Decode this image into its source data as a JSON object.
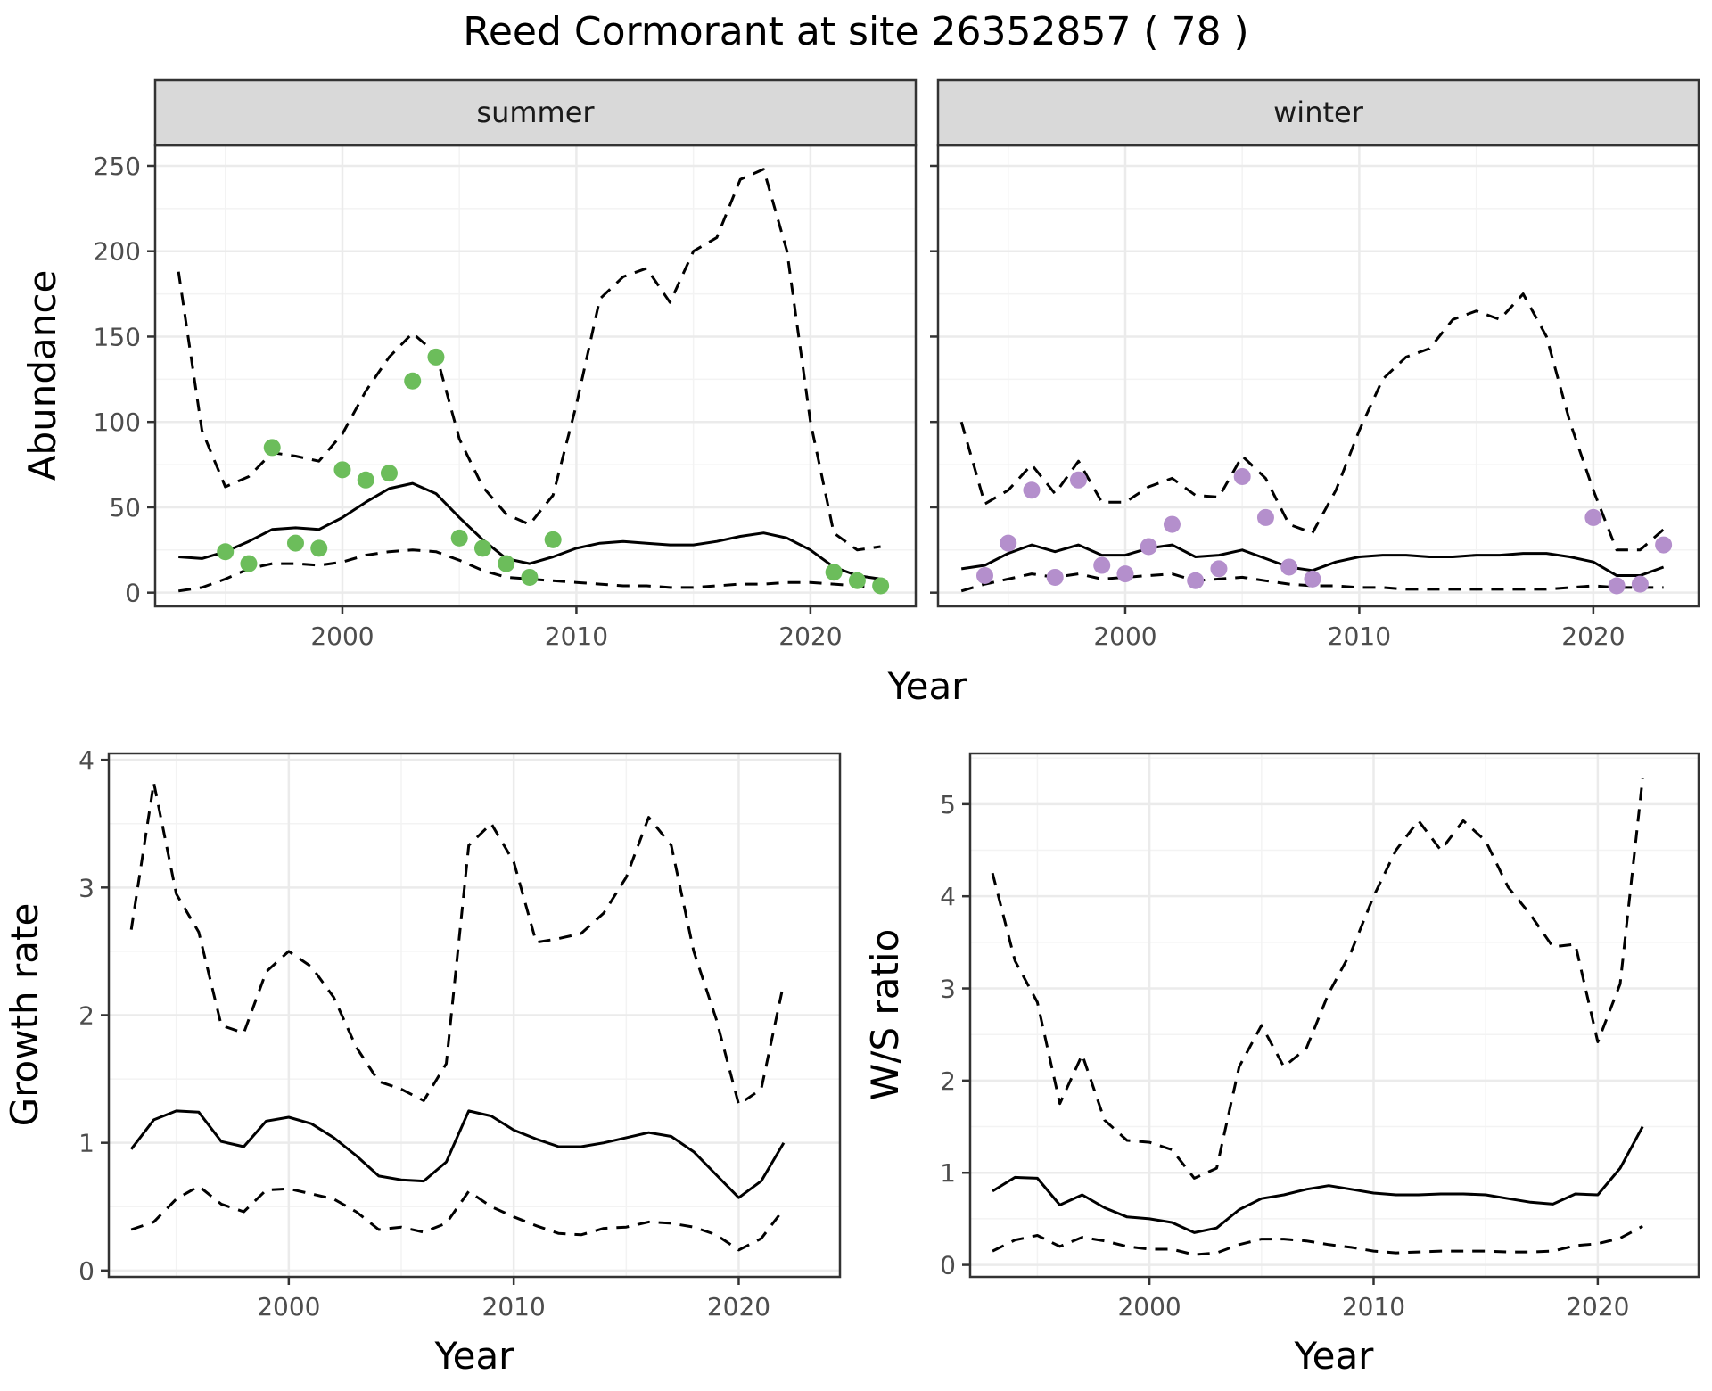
{
  "title": "Reed Cormorant at site 26352857 ( 78 )",
  "colors": {
    "summer_points": "#6cbd5b",
    "winter_points": "#b48fcc",
    "line": "#000000",
    "grid_major": "#ebebeb",
    "grid_minor": "#f3f3f3",
    "strip_fill": "#d9d9d9"
  },
  "chart_data": [
    {
      "type": "line",
      "panel": "summer",
      "strip_label": "summer",
      "xlabel": "Year",
      "ylabel": "Abundance",
      "xlim": [
        1992,
        2024.5
      ],
      "ylim": [
        -8,
        262
      ],
      "x_ticks": [
        2000,
        2010,
        2020
      ],
      "y_ticks": [
        0,
        50,
        100,
        150,
        200,
        250
      ],
      "grid": true,
      "x": [
        1993,
        1994,
        1995,
        1996,
        1997,
        1998,
        1999,
        2000,
        2001,
        2002,
        2003,
        2004,
        2005,
        2006,
        2007,
        2008,
        2009,
        2010,
        2011,
        2012,
        2013,
        2014,
        2015,
        2016,
        2017,
        2018,
        2019,
        2020,
        2021,
        2022,
        2023
      ],
      "series": [
        {
          "role": "estimate",
          "values": [
            21,
            20,
            24,
            30,
            37,
            38,
            37,
            44,
            53,
            61,
            64,
            58,
            44,
            31,
            20,
            17,
            21,
            26,
            29,
            30,
            29,
            28,
            28,
            30,
            33,
            35,
            32,
            25,
            15,
            10,
            8
          ]
        },
        {
          "role": "upper",
          "values": [
            188,
            95,
            62,
            68,
            82,
            80,
            77,
            93,
            118,
            138,
            152,
            140,
            90,
            62,
            46,
            40,
            57,
            110,
            172,
            185,
            190,
            170,
            200,
            208,
            242,
            248,
            200,
            100,
            35,
            25,
            27
          ]
        },
        {
          "role": "lower",
          "values": [
            1,
            3,
            8,
            14,
            17,
            17,
            16,
            18,
            22,
            24,
            25,
            24,
            19,
            13,
            9,
            8,
            7,
            6,
            5,
            4,
            4,
            3,
            3,
            4,
            5,
            5,
            6,
            6,
            5,
            4,
            3
          ]
        }
      ],
      "points": {
        "x": [
          1995,
          1996,
          1997,
          1998,
          1999,
          2000,
          2001,
          2002,
          2003,
          2004,
          2005,
          2006,
          2007,
          2008,
          2009,
          2021,
          2022,
          2023
        ],
        "y": [
          24,
          17,
          85,
          29,
          26,
          72,
          66,
          70,
          124,
          138,
          32,
          26,
          17,
          9,
          31,
          12,
          7,
          4
        ]
      }
    },
    {
      "type": "line",
      "panel": "winter",
      "strip_label": "winter",
      "xlabel": "Year",
      "ylabel": "",
      "xlim": [
        1992,
        2024.5
      ],
      "ylim": [
        -8,
        262
      ],
      "x_ticks": [
        2000,
        2010,
        2020
      ],
      "y_ticks": [
        0,
        50,
        100,
        150,
        200,
        250
      ],
      "grid": true,
      "x": [
        1993,
        1994,
        1995,
        1996,
        1997,
        1998,
        1999,
        2000,
        2001,
        2002,
        2003,
        2004,
        2005,
        2006,
        2007,
        2008,
        2009,
        2010,
        2011,
        2012,
        2013,
        2014,
        2015,
        2016,
        2017,
        2018,
        2019,
        2020,
        2021,
        2022,
        2023
      ],
      "series": [
        {
          "role": "estimate",
          "values": [
            14,
            16,
            23,
            28,
            24,
            28,
            22,
            22,
            26,
            28,
            21,
            22,
            25,
            20,
            15,
            13,
            18,
            21,
            22,
            22,
            21,
            21,
            22,
            22,
            23,
            23,
            21,
            18,
            10,
            10,
            15
          ]
        },
        {
          "role": "upper",
          "values": [
            100,
            52,
            60,
            75,
            58,
            77,
            53,
            53,
            62,
            67,
            57,
            56,
            80,
            67,
            40,
            35,
            60,
            95,
            125,
            138,
            143,
            160,
            165,
            160,
            175,
            150,
            100,
            60,
            25,
            25,
            37
          ]
        },
        {
          "role": "lower",
          "values": [
            1,
            5,
            8,
            11,
            9,
            11,
            8,
            9,
            10,
            11,
            7,
            8,
            9,
            7,
            5,
            4,
            4,
            3,
            3,
            2,
            2,
            2,
            2,
            2,
            2,
            2,
            3,
            4,
            3,
            3,
            3
          ]
        }
      ],
      "points": {
        "x": [
          1994,
          1995,
          1996,
          1997,
          1998,
          1999,
          2000,
          2001,
          2002,
          2003,
          2004,
          2005,
          2006,
          2007,
          2008,
          2020,
          2021,
          2022,
          2023
        ],
        "y": [
          10,
          29,
          60,
          9,
          66,
          16,
          11,
          27,
          40,
          7,
          14,
          68,
          44,
          15,
          8,
          44,
          4,
          5,
          28
        ]
      }
    },
    {
      "type": "line",
      "panel": "growth",
      "xlabel": "Year",
      "ylabel": "Growth rate",
      "xlim": [
        1992,
        2024.5
      ],
      "ylim": [
        -0.05,
        4.05
      ],
      "x_ticks": [
        2000,
        2010,
        2020
      ],
      "y_ticks": [
        0,
        1,
        2,
        3,
        4
      ],
      "grid": true,
      "x": [
        1993,
        1994,
        1995,
        1996,
        1997,
        1998,
        1999,
        2000,
        2001,
        2002,
        2003,
        2004,
        2005,
        2006,
        2007,
        2008,
        2009,
        2010,
        2011,
        2012,
        2013,
        2014,
        2015,
        2016,
        2017,
        2018,
        2019,
        2020,
        2021,
        2022
      ],
      "series": [
        {
          "role": "estimate",
          "values": [
            0.95,
            1.18,
            1.25,
            1.24,
            1.01,
            0.97,
            1.17,
            1.2,
            1.15,
            1.04,
            0.9,
            0.74,
            0.71,
            0.7,
            0.85,
            1.25,
            1.21,
            1.1,
            1.03,
            0.97,
            0.97,
            1.0,
            1.04,
            1.08,
            1.05,
            0.93,
            0.75,
            0.57,
            0.7,
            1.0
          ]
        },
        {
          "role": "upper",
          "values": [
            2.67,
            3.82,
            2.95,
            2.65,
            1.92,
            1.86,
            2.34,
            2.5,
            2.38,
            2.14,
            1.75,
            1.48,
            1.42,
            1.33,
            1.62,
            3.33,
            3.5,
            3.2,
            2.57,
            2.6,
            2.64,
            2.8,
            3.08,
            3.55,
            3.33,
            2.5,
            1.97,
            1.3,
            1.42,
            2.25
          ]
        },
        {
          "role": "lower",
          "values": [
            0.32,
            0.38,
            0.56,
            0.66,
            0.52,
            0.46,
            0.63,
            0.64,
            0.6,
            0.56,
            0.46,
            0.32,
            0.34,
            0.3,
            0.37,
            0.62,
            0.5,
            0.42,
            0.35,
            0.29,
            0.28,
            0.33,
            0.34,
            0.38,
            0.37,
            0.34,
            0.28,
            0.16,
            0.25,
            0.48
          ]
        }
      ]
    },
    {
      "type": "line",
      "panel": "ratio",
      "xlabel": "Year",
      "ylabel": "W/S ratio",
      "xlim": [
        1992,
        2024.5
      ],
      "ylim": [
        -0.13,
        5.55
      ],
      "x_ticks": [
        2000,
        2010,
        2020
      ],
      "y_ticks": [
        0,
        1,
        2,
        3,
        4,
        5
      ],
      "grid": true,
      "x": [
        1993,
        1994,
        1995,
        1996,
        1997,
        1998,
        1999,
        2000,
        2001,
        2002,
        2003,
        2004,
        2005,
        2006,
        2007,
        2008,
        2009,
        2010,
        2011,
        2012,
        2013,
        2014,
        2015,
        2016,
        2017,
        2018,
        2019,
        2020,
        2021,
        2022
      ],
      "series": [
        {
          "role": "estimate",
          "values": [
            0.8,
            0.95,
            0.94,
            0.65,
            0.76,
            0.62,
            0.52,
            0.5,
            0.46,
            0.35,
            0.4,
            0.6,
            0.72,
            0.76,
            0.82,
            0.86,
            0.82,
            0.78,
            0.76,
            0.76,
            0.77,
            0.77,
            0.76,
            0.72,
            0.68,
            0.66,
            0.77,
            0.76,
            1.05,
            1.5
          ]
        },
        {
          "role": "upper",
          "values": [
            4.25,
            3.3,
            2.85,
            1.75,
            2.28,
            1.57,
            1.35,
            1.33,
            1.25,
            0.94,
            1.05,
            2.15,
            2.6,
            2.15,
            2.35,
            2.95,
            3.4,
            4.0,
            4.5,
            4.82,
            4.5,
            4.82,
            4.6,
            4.1,
            3.8,
            3.45,
            3.48,
            2.42,
            3.05,
            5.28
          ]
        },
        {
          "role": "lower",
          "values": [
            0.15,
            0.27,
            0.32,
            0.2,
            0.3,
            0.26,
            0.2,
            0.17,
            0.17,
            0.11,
            0.13,
            0.22,
            0.28,
            0.28,
            0.26,
            0.22,
            0.19,
            0.15,
            0.13,
            0.14,
            0.15,
            0.15,
            0.15,
            0.14,
            0.14,
            0.15,
            0.21,
            0.23,
            0.29,
            0.42
          ]
        }
      ]
    }
  ]
}
